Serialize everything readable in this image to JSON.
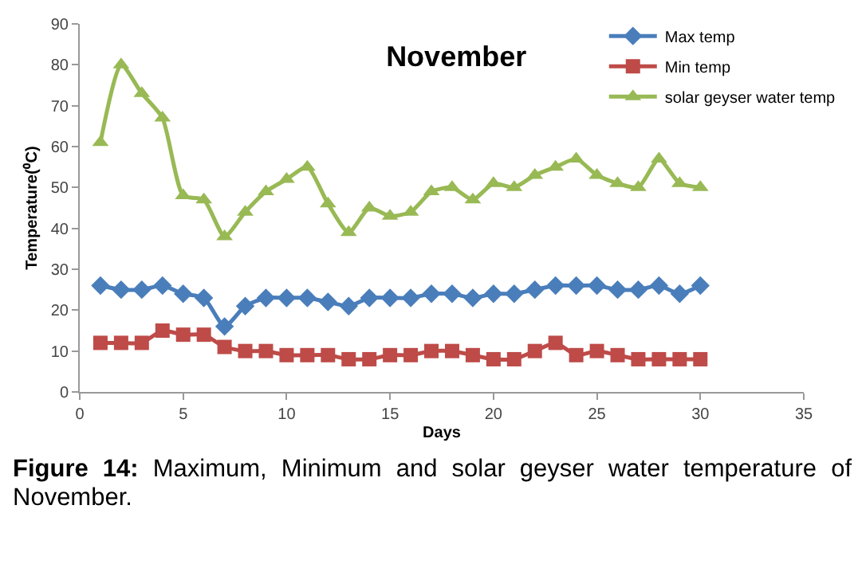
{
  "chart_data": {
    "type": "line",
    "title": "November",
    "xlabel": "Days",
    "ylabel": "Temperature(⁰C)",
    "x": [
      1,
      2,
      3,
      4,
      5,
      6,
      7,
      8,
      9,
      10,
      11,
      12,
      13,
      14,
      15,
      16,
      17,
      18,
      19,
      20,
      21,
      22,
      23,
      24,
      25,
      26,
      27,
      28,
      29,
      30
    ],
    "series": [
      {
        "name": "Max temp",
        "color": "#4a7ebb",
        "marker": "diamond",
        "values": [
          26,
          25,
          25,
          26,
          24,
          23,
          16,
          21,
          23,
          23,
          23,
          22,
          21,
          23,
          23,
          23,
          24,
          24,
          23,
          24,
          24,
          25,
          26,
          26,
          26,
          25,
          25,
          26,
          24,
          26
        ]
      },
      {
        "name": "Min temp",
        "color": "#be4b48",
        "marker": "square",
        "values": [
          12,
          12,
          12,
          15,
          14,
          14,
          11,
          10,
          10,
          9,
          9,
          9,
          8,
          8,
          9,
          9,
          10,
          10,
          9,
          8,
          8,
          10,
          12,
          9,
          10,
          9,
          8,
          8,
          8,
          8
        ]
      },
      {
        "name": "solar geyser water temp",
        "color": "#98b954",
        "marker": "triangle",
        "values": [
          61,
          80,
          73,
          67,
          48,
          47,
          38,
          44,
          49,
          52,
          55,
          46,
          39,
          45,
          43,
          44,
          49,
          50,
          47,
          51,
          50,
          53,
          55,
          57,
          53,
          51,
          50,
          57,
          51,
          50
        ]
      }
    ],
    "xlim": [
      0,
      35
    ],
    "xticks": [
      0,
      5,
      10,
      15,
      20,
      25,
      30,
      35
    ],
    "ylim": [
      0,
      90
    ],
    "yticks": [
      0,
      10,
      20,
      30,
      40,
      50,
      60,
      70,
      80,
      90
    ],
    "grid": false,
    "legend": "top right",
    "line_style": "solid",
    "annotations": [
      "Figure 14: Maximum, Minimum and solar geyser water temperature of November."
    ]
  }
}
